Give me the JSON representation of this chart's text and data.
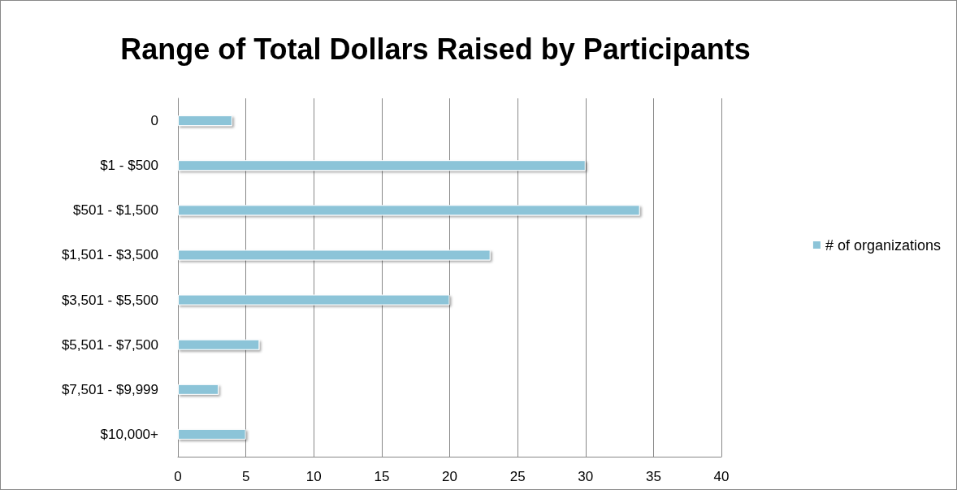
{
  "chart_data": {
    "type": "bar",
    "orientation": "horizontal",
    "title": "Range of Total Dollars Raised by Participants",
    "categories": [
      "0",
      "$1 - $500",
      "$501 - $1,500",
      "$1,501 - $3,500",
      "$3,501 - $5,500",
      "$5,501 - $7,500",
      "$7,501 - $9,999",
      "$10,000+"
    ],
    "series": [
      {
        "name": "# of organizations",
        "color": "#8cc4d8",
        "values": [
          4,
          30,
          34,
          23,
          20,
          6,
          3,
          5
        ]
      }
    ],
    "xlim": [
      0,
      40
    ],
    "xticks": [
      0,
      5,
      10,
      15,
      20,
      25,
      30,
      35,
      40
    ],
    "grid": "x",
    "legend": "right"
  }
}
